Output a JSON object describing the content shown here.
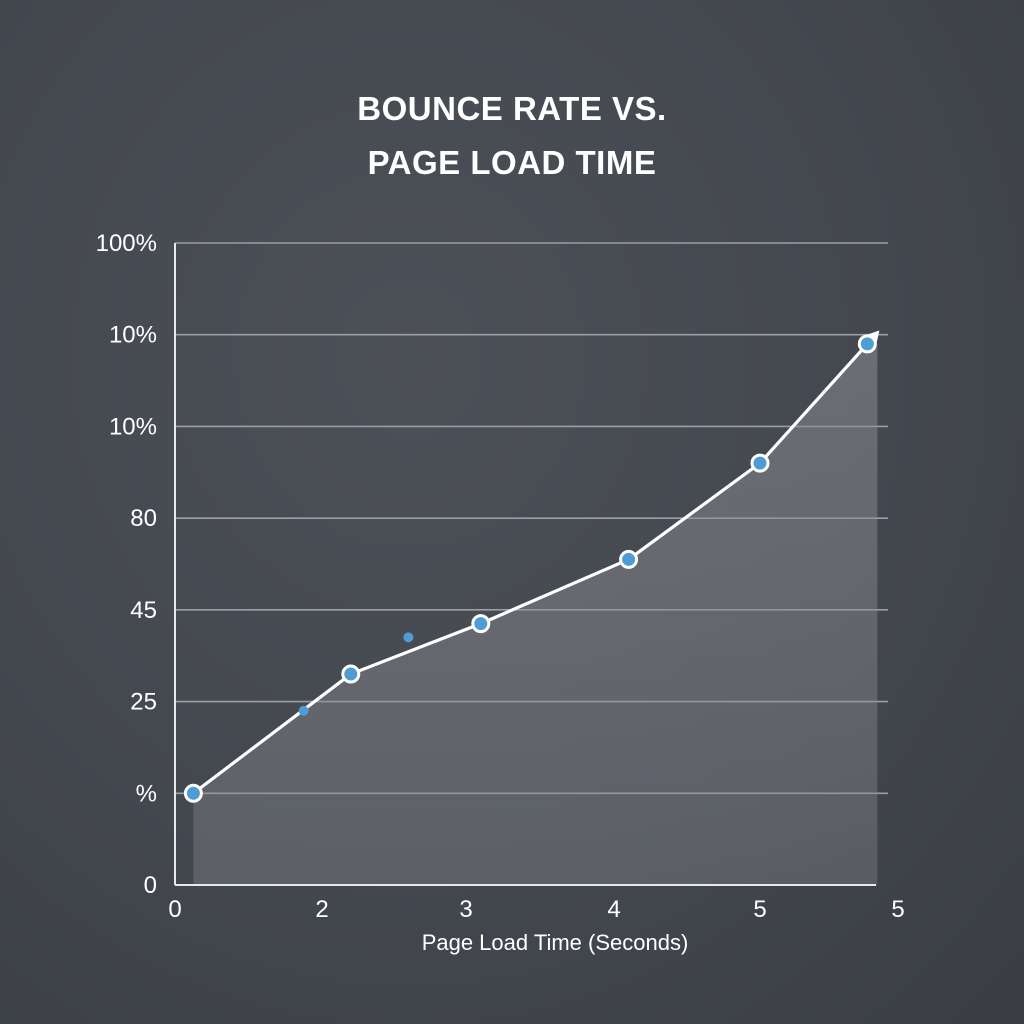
{
  "chart_data": {
    "type": "area",
    "title_lines": [
      "BOUNCE RATE VS.",
      "PAGE LOAD TIME"
    ],
    "xlabel": "Page Load Time (Seconds)",
    "ylabel": "",
    "x_tick_labels": [
      "0",
      "2",
      "3",
      "4",
      "5",
      "5"
    ],
    "y_tick_labels": [
      "0",
      "%",
      "25",
      "45",
      "80",
      "10%",
      "10%",
      "100%"
    ],
    "grid": true,
    "series": [
      {
        "points": [
          {
            "x": 0.25,
            "y": 1.0
          },
          {
            "x": 2.2,
            "y": 2.3
          },
          {
            "x": 3.1,
            "y": 2.85
          },
          {
            "x": 4.1,
            "y": 3.55
          },
          {
            "x": 5.0,
            "y": 4.6
          },
          {
            "x": 5.7,
            "y": 5.9
          }
        ],
        "color": "#ffffff",
        "marker_color": "#4f9bd4",
        "fill_color": "#8a8d93"
      }
    ],
    "stray_markers": [
      {
        "x": 1.75,
        "y": 1.9
      },
      {
        "x": 2.6,
        "y": 2.7
      }
    ]
  }
}
